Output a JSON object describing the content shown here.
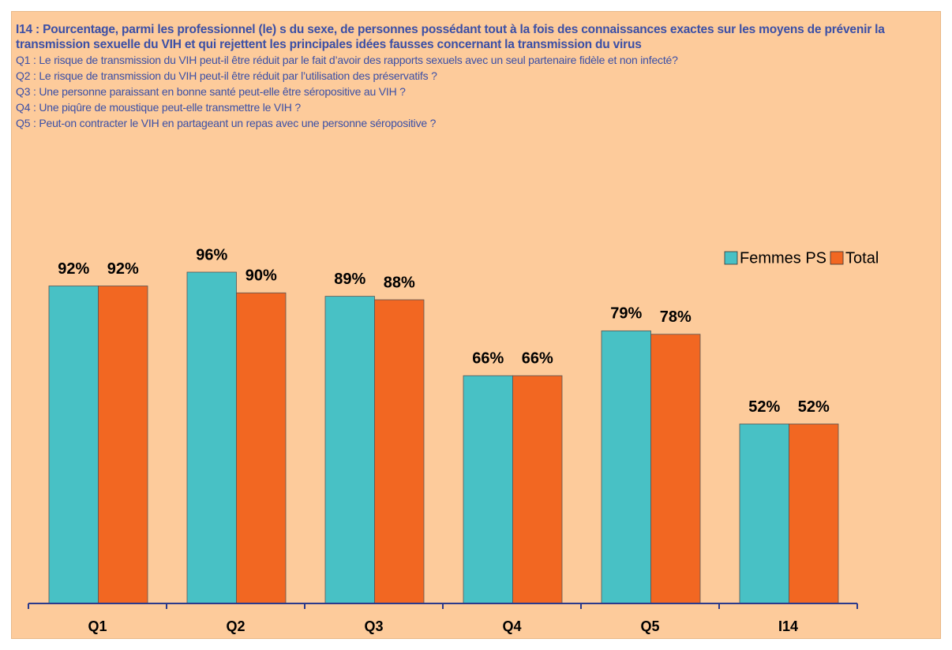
{
  "chart_data": {
    "type": "bar",
    "title": "I14 : Pourcentage, parmi les professionnel (le) s du sexe, de personnes possédant tout à la fois des connaissances exactes sur les moyens de prévenir la transmission sexuelle du VIH et qui rejettent les principales idées fausses concernant la transmission du virus",
    "notes": [
      "Q1 : Le risque de transmission du VIH peut-il être réduit par le fait d’avoir des rapports sexuels avec un seul partenaire fidèle et non infecté?",
      "Q2 : Le risque de transmission du VIH peut-il être réduit par l’utilisation des préservatifs ?",
      "Q3 : Une personne paraissant en bonne santé peut-elle être séropositive au VIH ?",
      "Q4 : Une piqûre de moustique peut-elle transmettre le VIH ?",
      "Q5 : Peut-on contracter le VIH en partageant un repas avec une personne séropositive ?"
    ],
    "categories": [
      "Q1",
      "Q2",
      "Q3",
      "Q4",
      "Q5",
      "I14"
    ],
    "series": [
      {
        "name": "Femmes PS",
        "color": "#48C1C5",
        "values": [
          92,
          96,
          89,
          66,
          79,
          52
        ],
        "value_labels": [
          "92%",
          "96%",
          "89%",
          "66%",
          "79%",
          "52%"
        ]
      },
      {
        "name": "Total",
        "color": "#F26722",
        "values": [
          92,
          90,
          88,
          66,
          78,
          52
        ],
        "value_labels": [
          "92%",
          "90%",
          "88%",
          "66%",
          "78%",
          "52%"
        ]
      }
    ],
    "ylim": [
      0,
      100
    ],
    "legend": "top-right"
  }
}
